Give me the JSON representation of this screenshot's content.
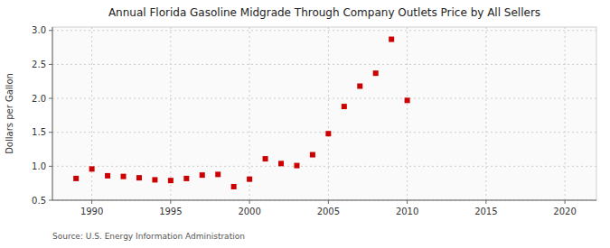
{
  "chart_data": {
    "type": "scatter",
    "title": "Annual Florida Gasoline Midgrade Through Company Outlets Price by All Sellers",
    "ylabel": "Dollars per Gallon",
    "source": "Source: U.S. Energy Information Administration",
    "x": [
      1989,
      1990,
      1991,
      1992,
      1993,
      1994,
      1995,
      1996,
      1997,
      1998,
      1999,
      2000,
      2001,
      2002,
      2003,
      2004,
      2005,
      2006,
      2007,
      2008,
      2009,
      2010
    ],
    "values": [
      0.82,
      0.96,
      0.86,
      0.85,
      0.83,
      0.8,
      0.79,
      0.82,
      0.87,
      0.88,
      0.7,
      0.81,
      1.11,
      1.04,
      1.01,
      1.17,
      1.48,
      1.88,
      2.18,
      2.37,
      2.87,
      1.97
    ],
    "color": "#cc0000",
    "marker": "square",
    "xlim": [
      1987.5,
      2022
    ],
    "ylim": [
      0.5,
      3.05
    ],
    "xticks": [
      1990,
      1995,
      2000,
      2005,
      2010,
      2015,
      2020
    ],
    "yticks": [
      0.5,
      {
        "value": 1.0,
        "label": "1.0"
      },
      1.5,
      {
        "value": 2.0,
        "label": "2.0"
      },
      2.5,
      {
        "value": 3.0,
        "label": "3.0"
      }
    ],
    "grid": true
  }
}
